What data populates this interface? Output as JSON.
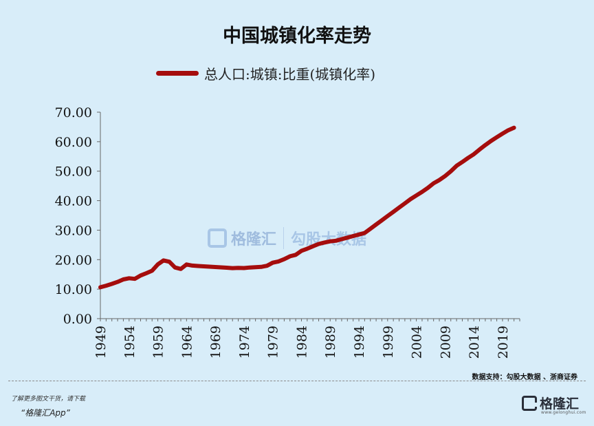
{
  "chart_data": {
    "type": "line",
    "title": "中国城镇化率走势",
    "legend": [
      "总人口:城镇:比重(城镇化率)"
    ],
    "legend_position": "top",
    "xlabel": "",
    "ylabel": "",
    "ylim": [
      0,
      70
    ],
    "y_ticks": [
      "0.00",
      "10.00",
      "20.00",
      "30.00",
      "40.00",
      "50.00",
      "60.00",
      "70.00"
    ],
    "x_ticks": [
      "1949",
      "1954",
      "1959",
      "1964",
      "1969",
      "1974",
      "1979",
      "1984",
      "1989",
      "1994",
      "1999",
      "2004",
      "2009",
      "2014",
      "2019"
    ],
    "grid": false,
    "series": [
      {
        "name": "总人口:城镇:比重(城镇化率)",
        "color": "#a50d0d",
        "x": [
          1949,
          1950,
          1951,
          1952,
          1953,
          1954,
          1955,
          1956,
          1957,
          1958,
          1959,
          1960,
          1961,
          1962,
          1963,
          1964,
          1965,
          1966,
          1967,
          1968,
          1969,
          1970,
          1971,
          1972,
          1973,
          1974,
          1975,
          1976,
          1977,
          1978,
          1979,
          1980,
          1981,
          1982,
          1983,
          1984,
          1985,
          1986,
          1987,
          1988,
          1989,
          1990,
          1991,
          1992,
          1993,
          1994,
          1995,
          1996,
          1997,
          1998,
          1999,
          2000,
          2001,
          2002,
          2003,
          2004,
          2005,
          2006,
          2007,
          2008,
          2009,
          2010,
          2011,
          2012,
          2013,
          2014,
          2015,
          2016,
          2017,
          2018,
          2019,
          2020,
          2021
        ],
        "values": [
          10.64,
          11.18,
          11.78,
          12.46,
          13.31,
          13.69,
          13.48,
          14.62,
          15.39,
          16.25,
          18.41,
          19.75,
          19.29,
          17.33,
          16.84,
          18.37,
          17.98,
          17.86,
          17.74,
          17.62,
          17.5,
          17.38,
          17.26,
          17.13,
          17.2,
          17.16,
          17.34,
          17.44,
          17.55,
          17.92,
          18.96,
          19.39,
          20.16,
          21.13,
          21.62,
          23.01,
          23.71,
          24.52,
          25.32,
          25.81,
          26.21,
          26.41,
          26.94,
          27.46,
          27.99,
          28.51,
          29.04,
          30.48,
          31.91,
          33.35,
          34.78,
          36.22,
          37.66,
          39.09,
          40.53,
          41.76,
          42.99,
          44.34,
          45.89,
          46.99,
          48.34,
          49.95,
          51.83,
          53.1,
          54.49,
          55.75,
          57.33,
          58.84,
          60.24,
          61.5,
          62.71,
          63.89,
          64.72
        ]
      }
    ]
  },
  "source_note": "数据支持：勾股大数据 、浙商证券",
  "footer": {
    "line1": "了解更多图文干货，请下载",
    "line2": "“格隆汇App”"
  },
  "logo": {
    "name": "格隆汇",
    "sub": "www.gelonghui.com"
  },
  "watermark": {
    "brand": "格隆汇",
    "partner": "勾股大数据",
    "site": "www.gogudata.com"
  }
}
